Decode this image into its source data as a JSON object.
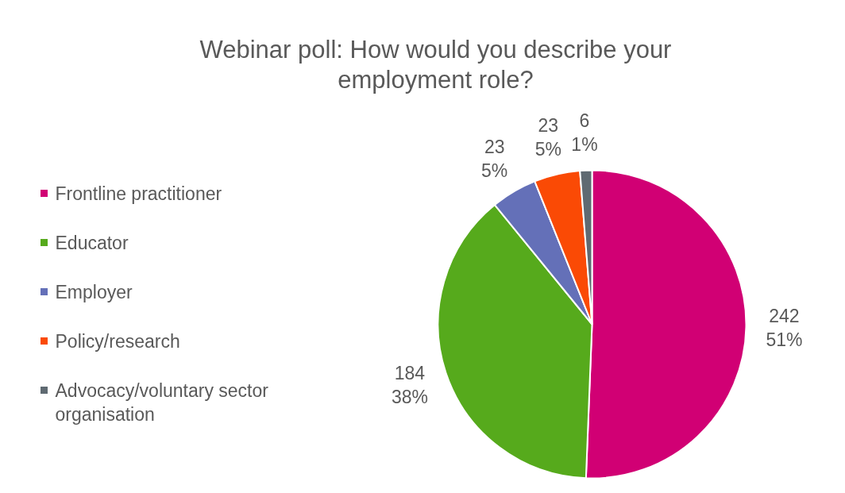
{
  "chart_data": {
    "type": "pie",
    "title": "Webinar poll: How would you describe your employment role?",
    "categories": [
      "Frontline practitioner",
      "Educator",
      "Employer",
      "Policy/research",
      "Advocacy/voluntary sector organisation"
    ],
    "values": [
      242,
      184,
      23,
      23,
      6
    ],
    "colors": [
      "#d10074",
      "#56aa1c",
      "#6470b8",
      "#fa4a05",
      "#5f6a72"
    ],
    "value_labels": [
      "242\n51%",
      "184\n38%",
      "23\n5%",
      "23\n5%",
      "6\n1%"
    ],
    "legend": "left"
  }
}
